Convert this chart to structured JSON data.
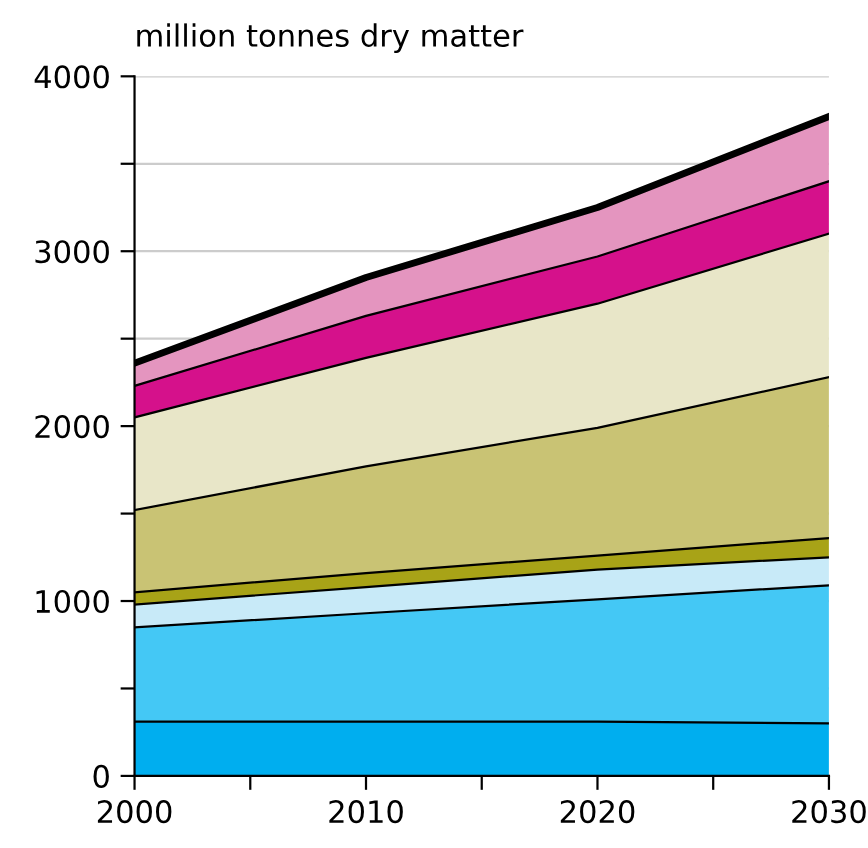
{
  "chart_data": {
    "type": "area",
    "stacked": true,
    "ylabel": "million tonnes dry matter",
    "x": [
      2000,
      2010,
      2020,
      2030
    ],
    "series": [
      {
        "color": "#00aeef",
        "values": [
          310,
          310,
          310,
          300
        ]
      },
      {
        "color": "#44c8f5",
        "values": [
          540,
          620,
          700,
          790
        ]
      },
      {
        "color": "#c8eaf8",
        "values": [
          130,
          150,
          170,
          160
        ]
      },
      {
        "color": "#a8a317",
        "values": [
          70,
          80,
          80,
          110
        ]
      },
      {
        "color": "#c9c374",
        "values": [
          470,
          610,
          730,
          920
        ]
      },
      {
        "color": "#e8e6c8",
        "values": [
          530,
          620,
          710,
          820
        ]
      },
      {
        "color": "#d5118b",
        "values": [
          180,
          240,
          270,
          300
        ]
      },
      {
        "color": "#e495bf",
        "values": [
          130,
          220,
          280,
          370
        ]
      }
    ],
    "xlim": [
      2000,
      2030
    ],
    "xticks": [
      2000,
      {
        "value": 2005,
        "label": null
      },
      2010,
      {
        "value": 2015,
        "label": null
      },
      2020,
      {
        "value": 2025,
        "label": null
      },
      2030
    ],
    "ylim": [
      0,
      4000
    ],
    "yticks": [
      0,
      {
        "value": 500,
        "label": null
      },
      1000,
      {
        "value": 1500,
        "label": null
      },
      2000,
      {
        "value": 2500,
        "label": null
      },
      3000,
      {
        "value": 3500,
        "label": null
      },
      4000
    ],
    "grid": "y",
    "legend": false
  }
}
